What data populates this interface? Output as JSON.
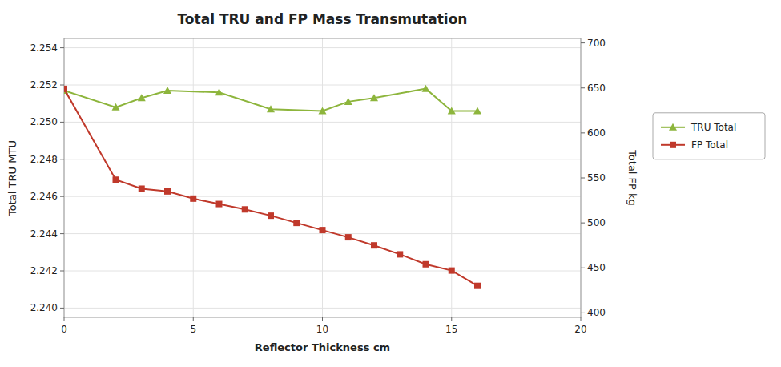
{
  "chart_data": {
    "type": "line",
    "title": "Total TRU and FP Mass Transmutation",
    "x_label": "Reflector Thickness cm",
    "y_label": "Total TRU MTU",
    "y2_label": "Total FP kg",
    "series": [
      {
        "name": "TRU Total",
        "color": "#8db53c",
        "marker": "triangle",
        "x": [
          0,
          2,
          3,
          4,
          6,
          8,
          10,
          11,
          12,
          14,
          15,
          16
        ],
        "values": [
          2.2517,
          2.2508,
          2.2513,
          2.2517,
          2.2516,
          2.2507,
          2.2506,
          2.2511,
          2.2513,
          2.2518,
          2.2506,
          2.2506
        ]
      },
      {
        "name": "FP Total",
        "color": "#c0392b",
        "marker": "square",
        "axis": "y2",
        "x": [
          0,
          2,
          3,
          4,
          5,
          6,
          7,
          8,
          9,
          10,
          11,
          12,
          13,
          14,
          15,
          16
        ],
        "values": [
          649,
          548,
          538,
          535,
          527,
          521,
          515,
          508,
          500,
          492,
          484,
          475,
          465,
          454,
          447,
          430
        ]
      }
    ],
    "xlim": [
      0,
      20
    ],
    "xticks": [
      0,
      5,
      10,
      15,
      20
    ],
    "ylim": [
      2.2395,
      2.2545
    ],
    "yticks": [
      {
        "value": 2.24,
        "label": "2.240"
      },
      2.242,
      2.244,
      2.246,
      2.248,
      {
        "value": 2.25,
        "label": "2.250"
      },
      2.252,
      2.254
    ],
    "y2lim": [
      395,
      705
    ],
    "y2ticks": [
      400,
      450,
      500,
      550,
      600,
      650,
      700
    ],
    "grid": true,
    "legend": "right"
  }
}
